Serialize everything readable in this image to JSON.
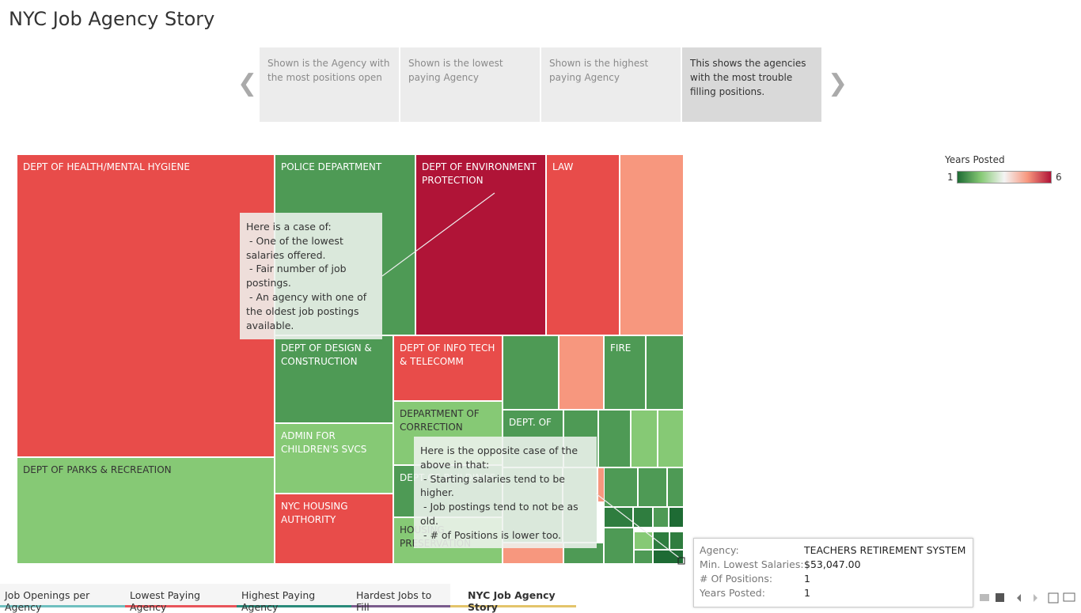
{
  "header": {
    "title": "NYC Job Agency Story"
  },
  "story_points": [
    "Shown is the Agency with the most positions open",
    "Shown is the lowest paying Agency",
    "Shown is the highest paying Agency",
    "This shows the agencies with the most trouble filling positions."
  ],
  "active_story_point": 3,
  "treemap": {
    "tiles": [
      {
        "label": "DEPT OF HEALTH/MENTAL HYGIENE",
        "color": "#e84c4a"
      },
      {
        "label": "POLICE DEPARTMENT",
        "color": "#4e9a55"
      },
      {
        "label": "DEPT OF ENVIRONMENT PROTECTION",
        "color": "#b01437"
      },
      {
        "label": "LAW",
        "color": "#e84c4a"
      },
      {
        "color": "#f7977e"
      },
      {
        "label": "DEPT OF PARKS & RECREATION",
        "color": "#86c975"
      },
      {
        "label": "DEPT OF DESIGN & CONSTRUCTION",
        "color": "#4e9a55"
      },
      {
        "label": "ADMIN FOR CHILDREN'S SVCS",
        "color": "#86c975"
      },
      {
        "label": "NYC HOUSING AUTHORITY",
        "color": "#e84c4a"
      },
      {
        "label": "DEPT OF INFO TECH & TELECOMM",
        "color": "#e84c4a"
      },
      {
        "label": "DEPARTMENT OF CORRECTION",
        "color": "#86c975"
      },
      {
        "label": "DEPT OF BUILDINGS",
        "color": "#4e9a55"
      },
      {
        "label": "HOUSING PRESERVATION",
        "color": "#86c975"
      },
      {
        "color": "#4e9a55"
      },
      {
        "color": "#f7977e"
      },
      {
        "label": "FIRE",
        "color": "#4e9a55"
      },
      {
        "color": "#4e9a55"
      },
      {
        "label": "DEPT. OF",
        "color": "#4e9a55"
      },
      {
        "color": "#4e9a55"
      },
      {
        "color": "#4e9a55"
      },
      {
        "color": "#86c975"
      },
      {
        "color": "#86c975"
      },
      {
        "color": "#4e9a55"
      },
      {
        "color": "#4e9a55"
      },
      {
        "color": "#f7977e"
      },
      {
        "color": "#f7977e"
      },
      {
        "color": "#4e9a55"
      },
      {
        "color": "#4e9a55"
      },
      {
        "color": "#4e9a55"
      },
      {
        "color": "#4e9a55"
      },
      {
        "color": "#2f7d3f"
      },
      {
        "color": "#2f7d3f"
      },
      {
        "color": "#4e9a55"
      },
      {
        "color": "#1e6b34"
      },
      {
        "color": "#4e9a55"
      },
      {
        "color": "#86c975"
      },
      {
        "color": "#2f7d3f"
      },
      {
        "color": "#2f7d3f"
      },
      {
        "color": "#4e9a55"
      },
      {
        "color": "#1e6b34"
      }
    ],
    "annotations": [
      {
        "lines": [
          "Here is a case of:",
          " - One of the lowest",
          "salaries offered.",
          " - Fair number of job",
          "postings.",
          " - An agency with one of",
          "the oldest job postings",
          "available."
        ]
      },
      {
        "lines": [
          "Here is the opposite case of the",
          "above in that:",
          " - Starting salaries tend to be",
          "higher.",
          " - Job postings tend to not be as",
          "old.",
          " - # of Positions is lower too."
        ]
      }
    ]
  },
  "legend": {
    "title": "Years Posted",
    "min": 1,
    "max": 6,
    "colors": [
      "#1e6b34",
      "#86c975",
      "#f4f4f4",
      "#f7977e",
      "#b01437"
    ]
  },
  "tooltip": {
    "rows": [
      {
        "label": "Agency:",
        "value": "TEACHERS RETIREMENT SYSTEM"
      },
      {
        "label": "Min. Lowest Salaries:",
        "value": "$53,047.00"
      },
      {
        "label": "# Of Positions:",
        "value": 1
      },
      {
        "label": "Years Posted:",
        "value": 1
      }
    ]
  },
  "tabs": [
    {
      "label": "Job Openings per Agency",
      "color": "#6fbfbf"
    },
    {
      "label": "Lowest Paying Agency",
      "color": "#e8545a"
    },
    {
      "label": "Highest Paying Agency",
      "color": "#2a8a7a"
    },
    {
      "label": "Hardest Jobs to Fill",
      "color": "#7a5b8c"
    },
    {
      "label": "NYC Job Agency Story",
      "color": "#e3c46a"
    }
  ],
  "active_tab": 4
}
